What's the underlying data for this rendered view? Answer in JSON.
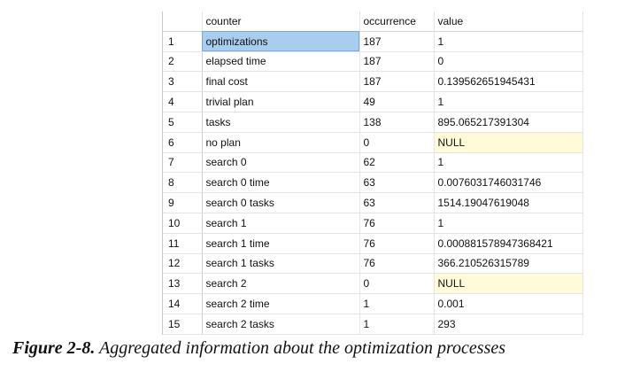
{
  "grid": {
    "columns": [
      "",
      "counter",
      "occurrence",
      "value"
    ],
    "rows": [
      {
        "n": "1",
        "counter": "optimizations",
        "occurrence": "187",
        "value": "1"
      },
      {
        "n": "2",
        "counter": "elapsed time",
        "occurrence": "187",
        "value": "0"
      },
      {
        "n": "3",
        "counter": "final cost",
        "occurrence": "187",
        "value": "0.139562651945431"
      },
      {
        "n": "4",
        "counter": "trivial plan",
        "occurrence": "49",
        "value": "1"
      },
      {
        "n": "5",
        "counter": "tasks",
        "occurrence": "138",
        "value": "895.065217391304"
      },
      {
        "n": "6",
        "counter": "no plan",
        "occurrence": "0",
        "value": "NULL"
      },
      {
        "n": "7",
        "counter": "search 0",
        "occurrence": "62",
        "value": "1"
      },
      {
        "n": "8",
        "counter": "search 0 time",
        "occurrence": "63",
        "value": "0.0076031746031746"
      },
      {
        "n": "9",
        "counter": "search 0 tasks",
        "occurrence": "63",
        "value": "1514.19047619048"
      },
      {
        "n": "10",
        "counter": "search 1",
        "occurrence": "76",
        "value": "1"
      },
      {
        "n": "11",
        "counter": "search 1 time",
        "occurrence": "76",
        "value": "0.000881578947368421"
      },
      {
        "n": "12",
        "counter": "search 1 tasks",
        "occurrence": "76",
        "value": "366.210526315789"
      },
      {
        "n": "13",
        "counter": "search 2",
        "occurrence": "0",
        "value": "NULL"
      },
      {
        "n": "14",
        "counter": "search 2 time",
        "occurrence": "1",
        "value": "0.001"
      },
      {
        "n": "15",
        "counter": "search 2 tasks",
        "occurrence": "1",
        "value": "293"
      }
    ],
    "colors": {
      "selected_cell": "#a8cdee",
      "null_cell": "#fffbd8",
      "grid_line": "#e4e4e4"
    }
  },
  "caption": {
    "label": "Figure 2-8.",
    "text": "Aggregated information about the optimization processes"
  }
}
